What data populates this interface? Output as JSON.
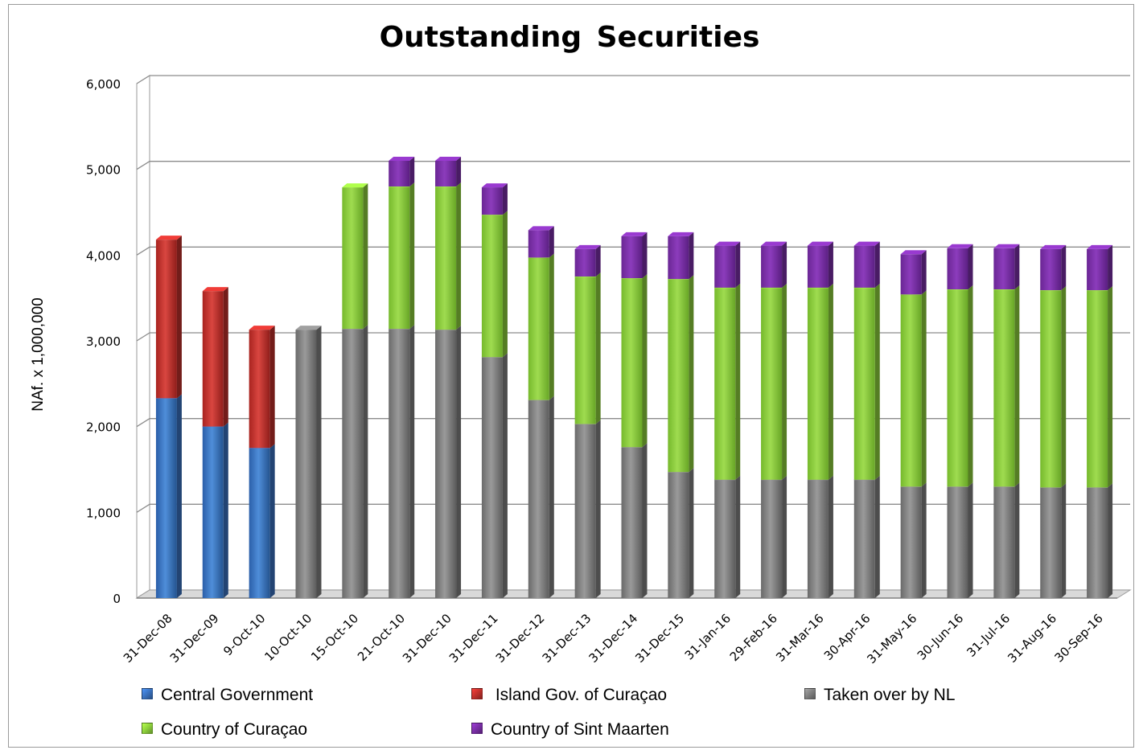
{
  "chart_data": {
    "type": "bar",
    "stacked": true,
    "title": "Outstanding  Securities",
    "xlabel": "",
    "ylabel": "NAf. x 1,000,000",
    "ylim": [
      0,
      6000
    ],
    "yticks": [
      0,
      1000,
      2000,
      3000,
      4000,
      5000,
      6000
    ],
    "ytick_labels": [
      "0",
      "1,000",
      "2,000",
      "3,000",
      "4,000",
      "5,000",
      "6,000"
    ],
    "grid": true,
    "legend_position": "bottom",
    "categories": [
      "31-Dec-08",
      "31-Dec-09",
      "9-Oct-10",
      "10-Oct-10",
      "15-Oct-10",
      "21-Oct-10",
      "31-Dec-10",
      "31-Dec-11",
      "31-Dec-12",
      "31-Dec-13",
      "31-Dec-14",
      "31-Dec-15",
      "31-Jan-16",
      "29-Feb-16",
      "31-Mar-16",
      "30-Apr-16",
      "31-May-16",
      "30-Jun-16",
      "31-Jul-16",
      "31-Aug-16",
      "30-Sep-16"
    ],
    "series": [
      {
        "name": "Central Government",
        "color": "#3a72bf",
        "values": [
          2330,
          2000,
          1750,
          0,
          0,
          0,
          0,
          0,
          0,
          0,
          0,
          0,
          0,
          0,
          0,
          0,
          0,
          0,
          0,
          0,
          0
        ]
      },
      {
        "name": " Island Gov. of Curaçao",
        "color": "#c0302c",
        "values": [
          1850,
          1580,
          1380,
          0,
          0,
          0,
          0,
          0,
          0,
          0,
          0,
          0,
          0,
          0,
          0,
          0,
          0,
          0,
          0,
          0,
          0
        ]
      },
      {
        "name": "Taken over by NL",
        "color": "#808080",
        "values": [
          0,
          0,
          0,
          3130,
          3140,
          3140,
          3130,
          2810,
          2310,
          2030,
          1760,
          1470,
          1380,
          1380,
          1380,
          1380,
          1300,
          1300,
          1300,
          1290,
          1290
        ]
      },
      {
        "name": "Country of Curaçao",
        "color": "#8dd13c",
        "values": [
          0,
          0,
          0,
          0,
          1650,
          1660,
          1670,
          1660,
          1660,
          1720,
          1970,
          2250,
          2240,
          2240,
          2240,
          2240,
          2240,
          2300,
          2300,
          2300,
          2300
        ]
      },
      {
        "name": "Country of Sint Maarten",
        "color": "#7a2ea6",
        "values": [
          0,
          0,
          0,
          0,
          0,
          300,
          300,
          320,
          320,
          320,
          490,
          500,
          490,
          490,
          490,
          490,
          470,
          480,
          480,
          480,
          480
        ]
      }
    ]
  }
}
